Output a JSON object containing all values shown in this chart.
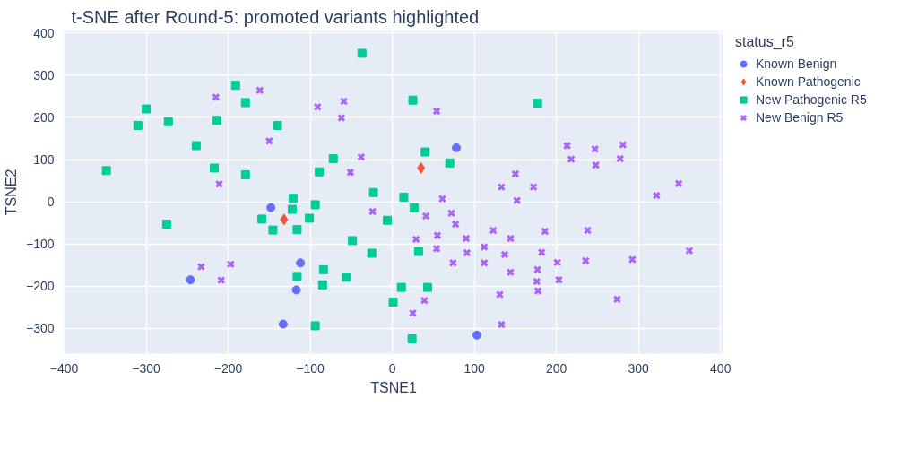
{
  "chart_data": {
    "type": "scatter",
    "title": "t-SNE after Round-5: promoted variants highlighted",
    "xlabel": "TSNE1",
    "ylabel": "TSNE2",
    "legend_title": "status_r5",
    "legend": "right",
    "grid": true,
    "xlim": [
      -400,
      403
    ],
    "ylim": [
      -360,
      405
    ],
    "xticks": [
      -400,
      -300,
      -200,
      -100,
      0,
      100,
      200,
      300,
      400
    ],
    "yticks": [
      -300,
      -200,
      -100,
      0,
      100,
      200,
      300,
      400
    ],
    "series": [
      {
        "name": "Known Benign",
        "color": "#636efa",
        "marker": "circle",
        "x": [
          -148,
          -112,
          -246,
          -117,
          -133,
          78,
          103
        ],
        "values": [
          -14,
          -145,
          -185,
          -209,
          -290,
          128,
          -316
        ]
      },
      {
        "name": "Known Pathogenic",
        "color": "#ef553b",
        "marker": "diamond",
        "x": [
          -132,
          35
        ],
        "values": [
          -42,
          80
        ]
      },
      {
        "name": "New Pathogenic R5",
        "color": "#00cc96",
        "marker": "square",
        "x": [
          -37,
          -191,
          -179,
          -300,
          -310,
          -273,
          -214,
          -140,
          -239,
          -72,
          -348.5,
          -217,
          -179,
          -89,
          -23,
          -121,
          -94,
          -122,
          -159,
          -101,
          -6,
          -275,
          -145.5,
          -116,
          -48.6,
          -25,
          -84,
          -116,
          -56,
          -85,
          1,
          -94,
          25,
          177,
          40,
          70,
          14,
          26.5,
          32,
          11,
          43,
          24
        ],
        "values": [
          352,
          276,
          235,
          220,
          181,
          190,
          193,
          181,
          133,
          102,
          74,
          80,
          64,
          71,
          22,
          8,
          -7,
          -18,
          -41,
          -39,
          -44,
          -53,
          -67,
          -66,
          -92,
          -122,
          -161,
          -177,
          -179,
          -197,
          -238,
          -294,
          241,
          234,
          118,
          92,
          11,
          -14,
          -118,
          -203,
          -203,
          -325
        ]
      },
      {
        "name": "New Benign R5",
        "color": "#ab63fa",
        "marker": "cross",
        "x": [
          -161.5,
          -215,
          -91,
          -59,
          -62,
          -150,
          -38,
          -51,
          -211,
          -24,
          -233,
          -197,
          -208.5,
          54,
          213,
          247,
          281,
          218,
          248,
          277.6,
          150,
          133,
          172,
          152,
          349,
          322,
          61,
          41,
          72,
          77,
          123,
          186,
          238,
          29,
          55,
          90,
          144,
          362,
          54,
          112,
          91,
          137,
          182,
          74,
          112,
          201,
          235.6,
          292.5,
          144,
          177,
          176,
          203,
          177.6,
          131,
          39,
          25,
          274,
          133
        ],
        "values": [
          264,
          248,
          225,
          238,
          199,
          144,
          106,
          70,
          42,
          -23,
          -154,
          -148,
          -186,
          215,
          133,
          125,
          135,
          101,
          87,
          102,
          66,
          35,
          35,
          3,
          43,
          15,
          7,
          -34,
          -27,
          -53,
          -68,
          -70,
          -68,
          -89,
          -80,
          -87,
          -87,
          -116,
          -111,
          -107,
          -121,
          -125,
          -120,
          -145,
          -145,
          -144,
          -140,
          -137,
          -167,
          -161,
          -189,
          -185,
          -211,
          -220,
          -234,
          -264,
          -231,
          -291
        ]
      }
    ]
  }
}
